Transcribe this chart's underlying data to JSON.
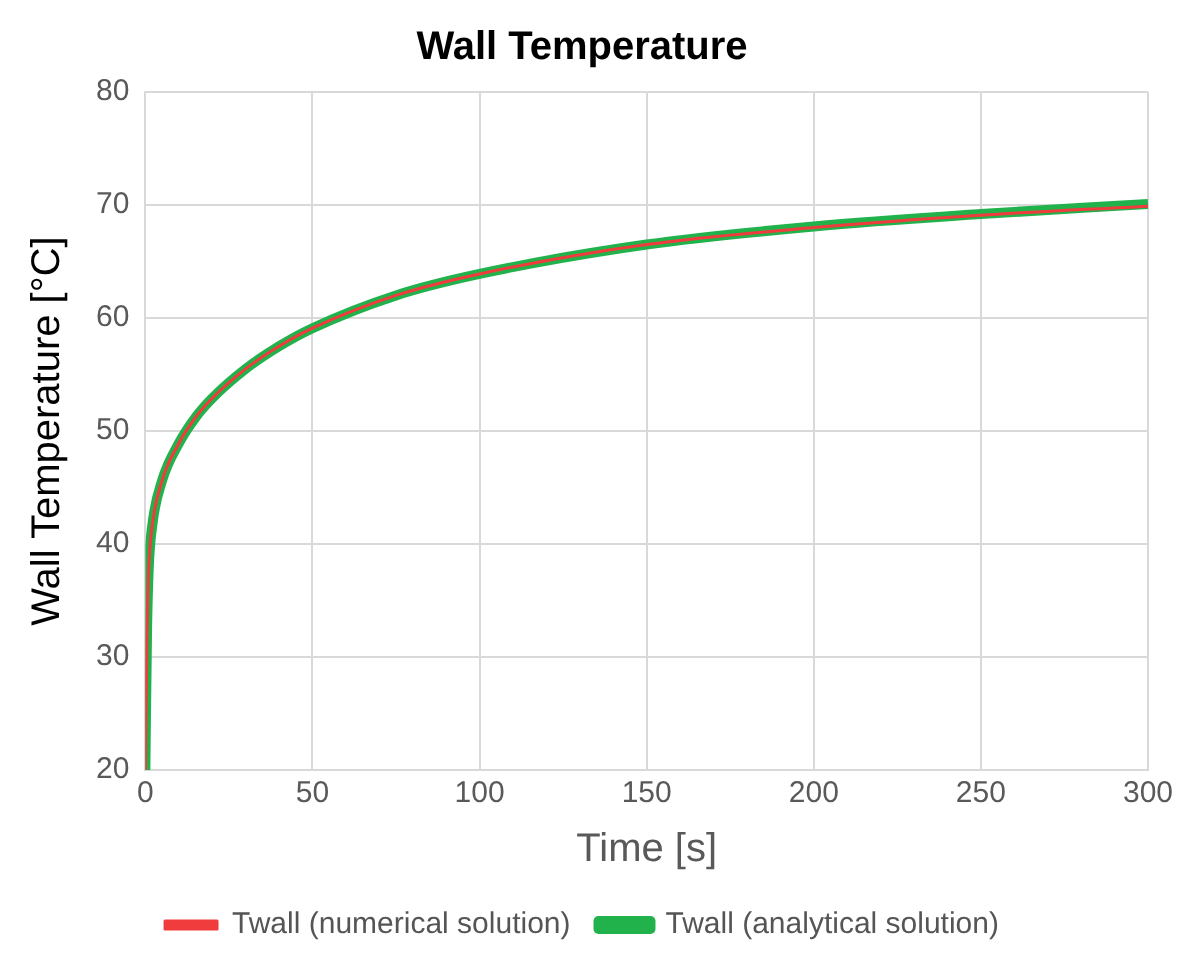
{
  "chart_data": {
    "type": "line",
    "title": "Wall Temperature",
    "xlabel": "Time [s]",
    "ylabel": "Wall Temperature [°C]",
    "x": [
      0,
      0.5,
      1,
      2,
      5,
      10,
      15,
      20,
      30,
      40,
      50,
      75,
      100,
      150,
      200,
      250,
      300
    ],
    "series": [
      {
        "name": "Twall (analytical solution)",
        "color": "#22b24c",
        "values": [
          20,
          32.3,
          37.8,
          41.5,
          45.6,
          48.9,
          51.2,
          52.9,
          55.5,
          57.5,
          59.1,
          62,
          63.9,
          66.5,
          68.1,
          69.2,
          70.1
        ]
      },
      {
        "name": "Twall (numerical solution)",
        "color": "#f03c3c",
        "values": [
          20,
          32.3,
          37.8,
          41.5,
          45.6,
          48.9,
          51.2,
          52.9,
          55.5,
          57.5,
          59.1,
          62,
          63.9,
          66.5,
          68,
          69.1,
          69.9
        ]
      }
    ],
    "xlim": [
      0,
      300
    ],
    "xticks": [
      0,
      50,
      100,
      150,
      200,
      250,
      300
    ],
    "ylim": [
      20,
      80
    ],
    "yticks": [
      20,
      30,
      40,
      50,
      60,
      70,
      80
    ],
    "grid": true,
    "legend": "bottom",
    "marker": "none",
    "line_style": "solid"
  }
}
